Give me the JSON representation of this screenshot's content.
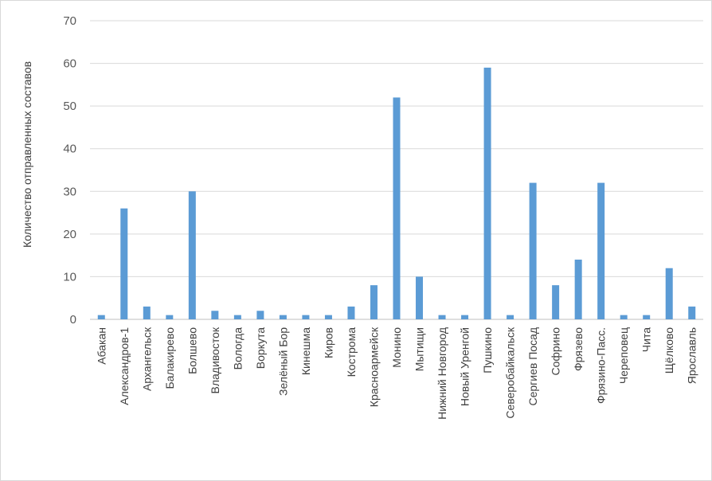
{
  "chart_data": {
    "type": "bar",
    "title": "",
    "xlabel": "",
    "ylabel": "Количество отправленных составов",
    "ylim": [
      0,
      70
    ],
    "yticks": [
      0,
      10,
      20,
      30,
      40,
      50,
      60,
      70
    ],
    "grid": true,
    "legend": "none",
    "bar_color": "#5b9bd5",
    "categories": [
      "Абакан",
      "Александров-1",
      "Архангельск",
      "Балакирево",
      "Болшево",
      "Владивосток",
      "Вологда",
      "Воркута",
      "Зелёный Бор",
      "Кинешма",
      "Киров",
      "Кострома",
      "Красноармейск",
      "Монино",
      "Мытищи",
      "Нижний Новгород",
      "Новый Уренгой",
      "Пушкино",
      "Северобайкальск",
      "Сергиев Посад",
      "Софрино",
      "Фрязево",
      "Фрязино-Пасс.",
      "Череповец",
      "Чита",
      "Щёлково",
      "Ярославль"
    ],
    "values": [
      1,
      26,
      3,
      1,
      30,
      2,
      1,
      2,
      1,
      1,
      1,
      3,
      8,
      52,
      10,
      1,
      1,
      59,
      1,
      32,
      8,
      14,
      32,
      1,
      1,
      12,
      3
    ]
  }
}
